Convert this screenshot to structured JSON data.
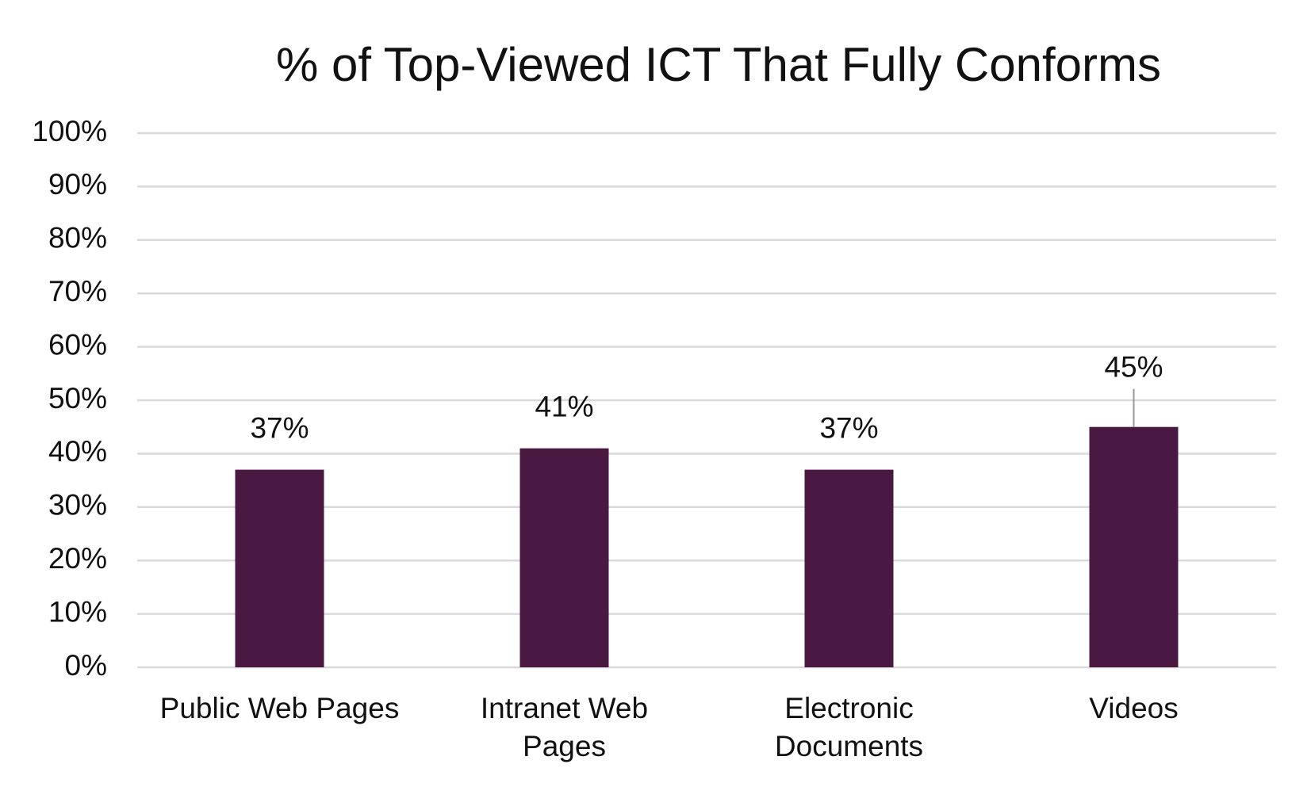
{
  "chart_data": {
    "type": "bar",
    "title": "% of Top-Viewed ICT That Fully Conforms",
    "categories": [
      "Public Web Pages",
      "Intranet Web Pages",
      "Electronic Documents",
      "Videos"
    ],
    "values": [
      37,
      41,
      37,
      45
    ],
    "value_labels": [
      "37%",
      "41%",
      "37%",
      "45%"
    ],
    "color": "#4a1942",
    "ylim": [
      0,
      100
    ],
    "yticks": [
      {
        "value": 0,
        "label": "0%"
      },
      {
        "value": 10,
        "label": "10%"
      },
      {
        "value": 20,
        "label": "20%"
      },
      {
        "value": 30,
        "label": "30%"
      },
      {
        "value": 40,
        "label": "40%"
      },
      {
        "value": 50,
        "label": "50%"
      },
      {
        "value": 60,
        "label": "60%"
      },
      {
        "value": 70,
        "label": "70%"
      },
      {
        "value": 80,
        "label": "80%"
      },
      {
        "value": 90,
        "label": "90%"
      },
      {
        "value": 100,
        "label": "100%"
      }
    ],
    "grid": true
  }
}
